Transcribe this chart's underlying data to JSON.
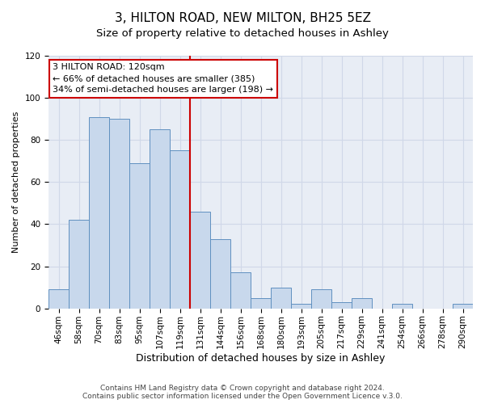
{
  "title": "3, HILTON ROAD, NEW MILTON, BH25 5EZ",
  "subtitle": "Size of property relative to detached houses in Ashley",
  "xlabel": "Distribution of detached houses by size in Ashley",
  "ylabel": "Number of detached properties",
  "bar_color": "#c8d8ec",
  "bar_edge_color": "#6090c0",
  "background_color": "#e8edf5",
  "grid_color": "#d0d8e8",
  "categories": [
    "46sqm",
    "58sqm",
    "70sqm",
    "83sqm",
    "95sqm",
    "107sqm",
    "119sqm",
    "131sqm",
    "144sqm",
    "156sqm",
    "168sqm",
    "180sqm",
    "193sqm",
    "205sqm",
    "217sqm",
    "229sqm",
    "241sqm",
    "254sqm",
    "266sqm",
    "278sqm",
    "290sqm"
  ],
  "values": [
    9,
    42,
    91,
    90,
    69,
    85,
    75,
    46,
    33,
    17,
    5,
    10,
    2,
    9,
    3,
    5,
    0,
    2,
    0,
    0,
    2
  ],
  "vline_x": 6.5,
  "vline_color": "#cc0000",
  "annotation_line1": "3 HILTON ROAD: 120sqm",
  "annotation_line2": "← 66% of detached houses are smaller (385)",
  "annotation_line3": "34% of semi-detached houses are larger (198) →",
  "annotation_box_edge_color": "#cc0000",
  "ylim": [
    0,
    120
  ],
  "yticks": [
    0,
    20,
    40,
    60,
    80,
    100,
    120
  ],
  "footer_text": "Contains HM Land Registry data © Crown copyright and database right 2024.\nContains public sector information licensed under the Open Government Licence v.3.0.",
  "title_fontsize": 11,
  "subtitle_fontsize": 9.5,
  "xlabel_fontsize": 9,
  "ylabel_fontsize": 8,
  "tick_fontsize": 7.5,
  "annotation_fontsize": 8,
  "footer_fontsize": 6.5
}
